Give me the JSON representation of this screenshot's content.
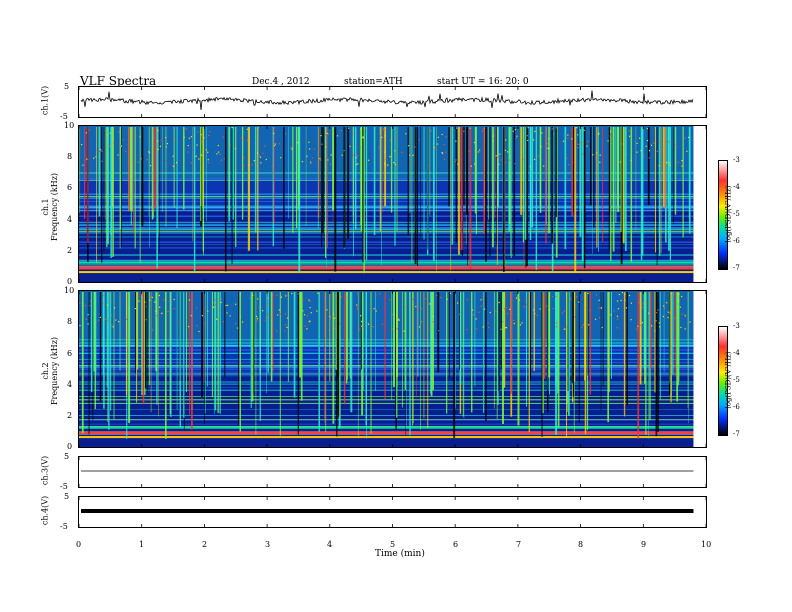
{
  "header": {
    "title": "VLF  Spectra",
    "date": "Dec.4   , 2012",
    "station": "station=ATH",
    "start": "start  UT  =   16: 20: 0"
  },
  "panels": {
    "ch1": {
      "ylabel": "ch.1(V)",
      "ticks": [
        "5",
        "-5"
      ]
    },
    "spec1": {
      "ylabel_top": "ch.1",
      "ylabel": "Frequency  (kHz)",
      "ticks": [
        "10",
        "8",
        "6",
        "4",
        "2",
        "0"
      ]
    },
    "spec2": {
      "ylabel_top": "ch.2",
      "ylabel": "Frequency  (kHz)",
      "ticks": [
        "10",
        "8",
        "6",
        "4",
        "2",
        "0"
      ]
    },
    "ch3": {
      "ylabel": "ch.3(V)",
      "ticks": [
        "5",
        "-5"
      ]
    },
    "ch4": {
      "ylabel": "ch.4(V)",
      "ticks": [
        "5",
        "-5"
      ]
    }
  },
  "colorbar": {
    "label": "log(PSD)(V²/Hz)",
    "ticks": [
      "-3",
      "-4",
      "-5",
      "-6",
      "-7"
    ]
  },
  "xaxis": {
    "label": "Time  (min)",
    "ticks": [
      "0",
      "1",
      "2",
      "3",
      "4",
      "5",
      "6",
      "7",
      "8",
      "9",
      "10"
    ]
  },
  "chart_data": {
    "type": "heatmap",
    "title": "VLF  Spectra",
    "xlabel": "Time  (min)",
    "xlim": [
      0,
      10
    ],
    "data_end_min": 9.8,
    "spectrogram_ylim_kHz": [
      0,
      10
    ],
    "waveform_ylim_V": [
      -5,
      5
    ],
    "colorbar_range_logPSD": [
      -7,
      -3
    ],
    "series": [
      {
        "name": "ch.1(V)",
        "kind": "waveform"
      },
      {
        "name": "ch.1",
        "kind": "spectrogram"
      },
      {
        "name": "ch.2",
        "kind": "spectrogram"
      },
      {
        "name": "ch.3(V)",
        "kind": "waveform"
      },
      {
        "name": "ch.4(V)",
        "kind": "waveform"
      }
    ]
  }
}
